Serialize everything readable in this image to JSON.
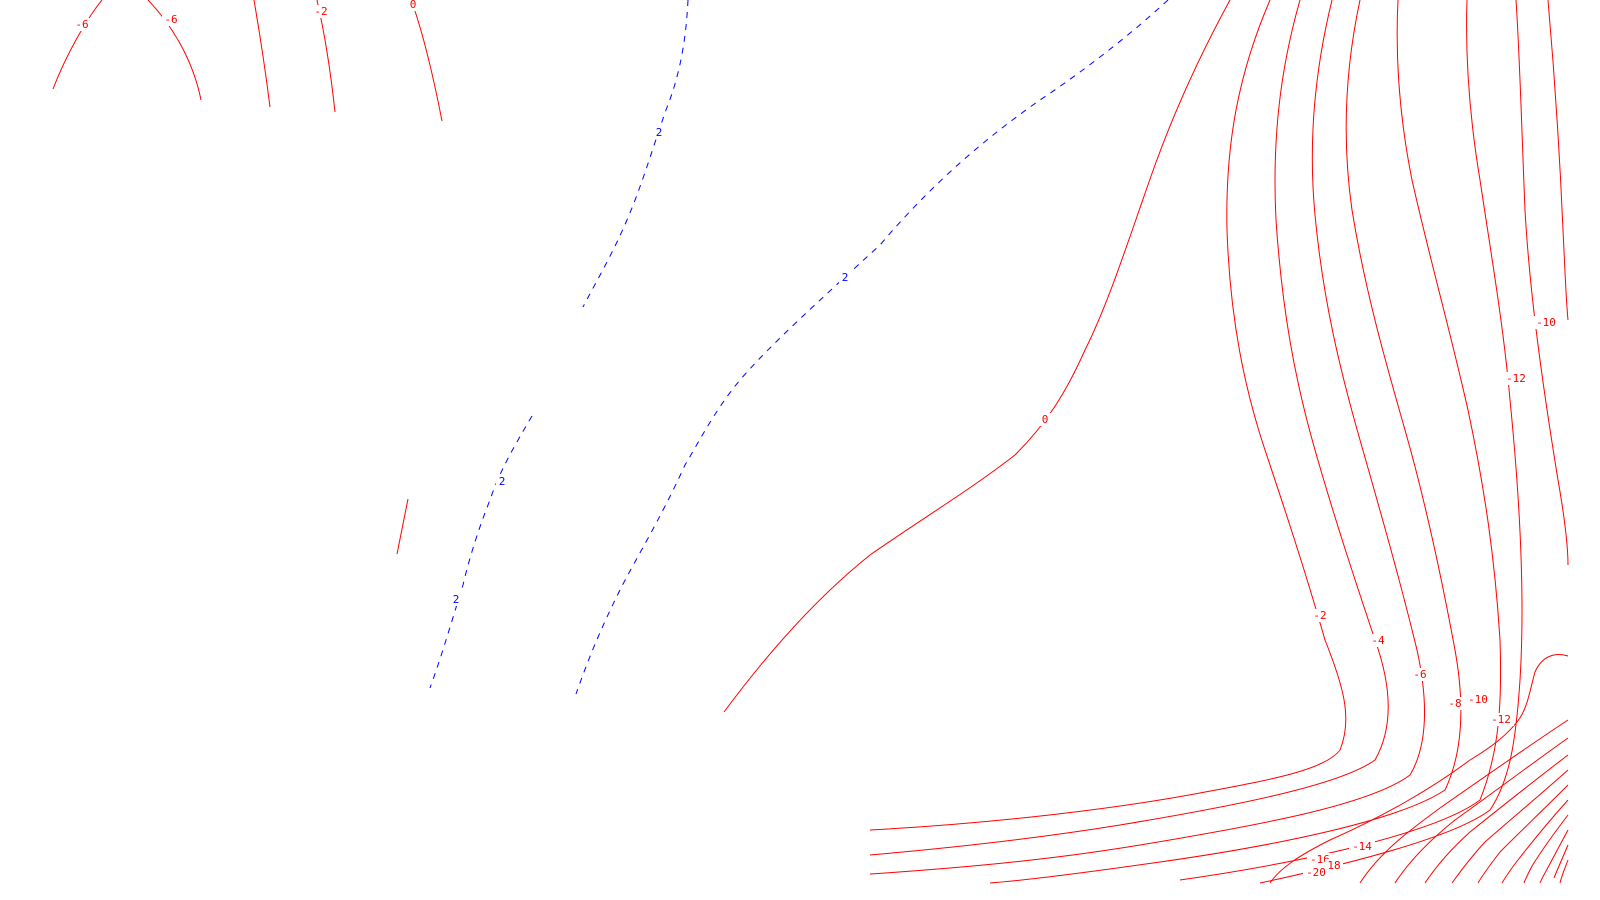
{
  "colors": {
    "negative": "#ff0000",
    "positive": "#0000ff",
    "background": "#ffffff"
  },
  "labels": {
    "top_left_a": "-6",
    "top_left_b": "-6",
    "top_left_c": "-2",
    "top_left_d": "0",
    "blue_upper": "2",
    "blue_mid": "2",
    "blue_low_a": "2",
    "blue_low_b": "2",
    "zero_main": "0",
    "m10_right": "-10",
    "m12_right": "-12",
    "m2_lower": "-2",
    "m4_lower": "-4",
    "m6_lower": "-6",
    "m8_lower": "-8",
    "m10_lower": "-10",
    "m12_lower": "-12",
    "m14_bottom": "-14",
    "m16_bottom": "-16",
    "m18_bottom": "18",
    "m20_bottom": "-20"
  }
}
